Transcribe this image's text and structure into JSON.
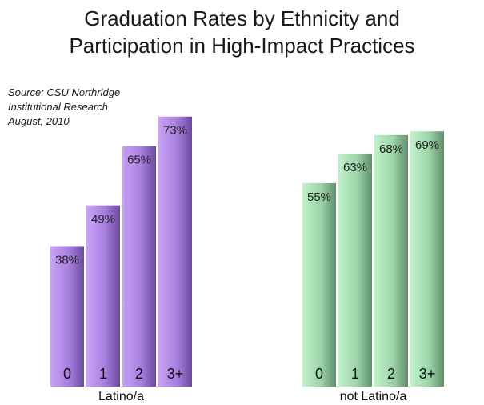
{
  "title_line1": "Graduation Rates by Ethnicity and",
  "title_line2": "Participation in High-Impact Practices",
  "source_lines": [
    "Source:  CSU Northridge",
    "Institutional Research",
    "August, 2010"
  ],
  "chart_data": {
    "type": "bar",
    "title": "Graduation Rates by Ethnicity and Participation in High-Impact Practices",
    "categories": [
      "0",
      "1",
      "2",
      "3+"
    ],
    "series": [
      {
        "name": "Latino/a",
        "values": [
          38,
          49,
          65,
          73
        ],
        "labels": [
          "38%",
          "49%",
          "65%",
          "73%"
        ],
        "color": "#b48ae6"
      },
      {
        "name": "not Latino/a",
        "values": [
          55,
          63,
          68,
          69
        ],
        "labels": [
          "55%",
          "63%",
          "68%",
          "69%"
        ],
        "color": "#a8e0b4"
      }
    ],
    "ylim": [
      0,
      100
    ],
    "grid": false,
    "legend": "none"
  }
}
